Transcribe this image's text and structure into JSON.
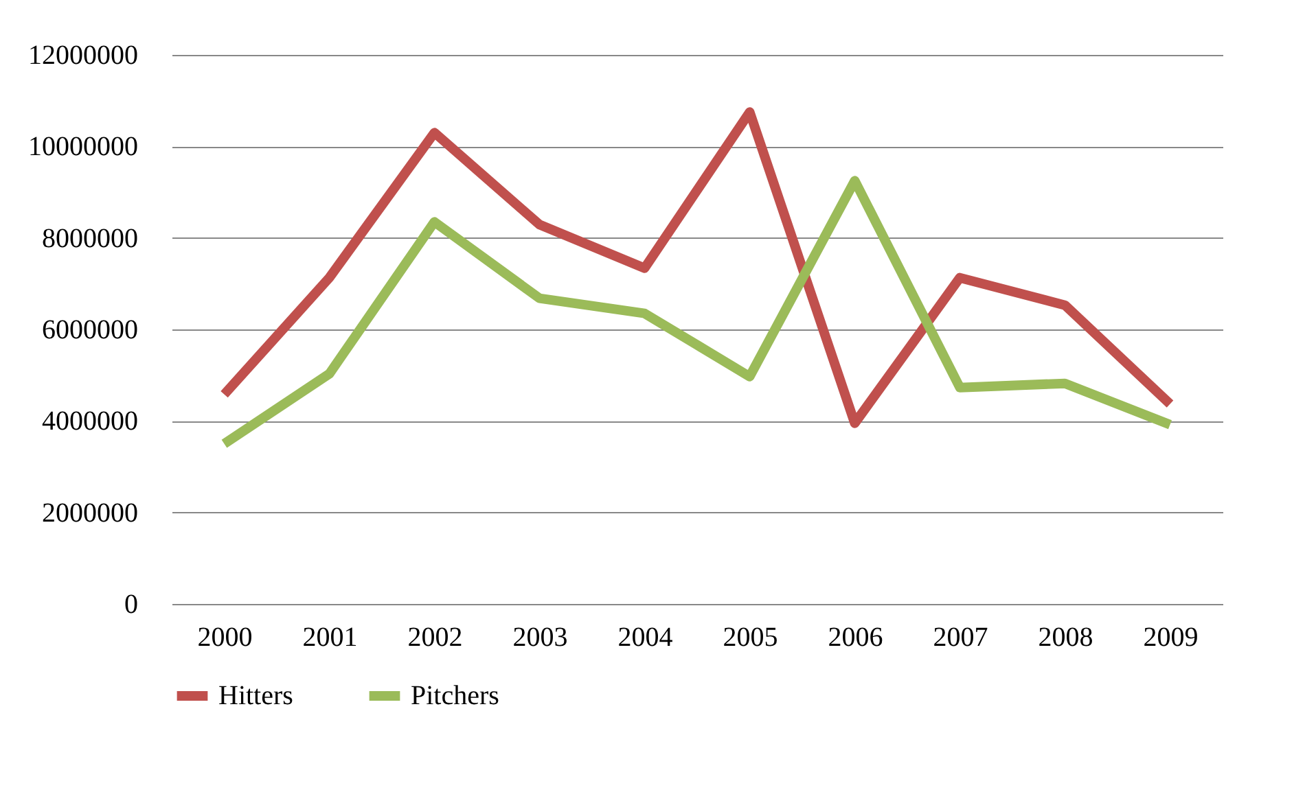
{
  "chart_data": {
    "type": "line",
    "categories": [
      "2000",
      "2001",
      "2002",
      "2003",
      "2004",
      "2005",
      "2006",
      "2007",
      "2008",
      "2009"
    ],
    "series": [
      {
        "name": "Hitters",
        "color": "#c0504d",
        "values": [
          4580000,
          7130000,
          10300000,
          8290000,
          7340000,
          10750000,
          3950000,
          7130000,
          6530000,
          4370000
        ]
      },
      {
        "name": "Pitchers",
        "color": "#9bbb59",
        "values": [
          3500000,
          5030000,
          8350000,
          6680000,
          6350000,
          4970000,
          9250000,
          4730000,
          4820000,
          3920000
        ]
      }
    ],
    "ylim": [
      0,
      12000000
    ],
    "yticks": [
      0,
      2000000,
      4000000,
      6000000,
      8000000,
      10000000,
      12000000
    ],
    "grid": "y",
    "legend": "bottom",
    "marker": "none",
    "line_style": "solid"
  }
}
